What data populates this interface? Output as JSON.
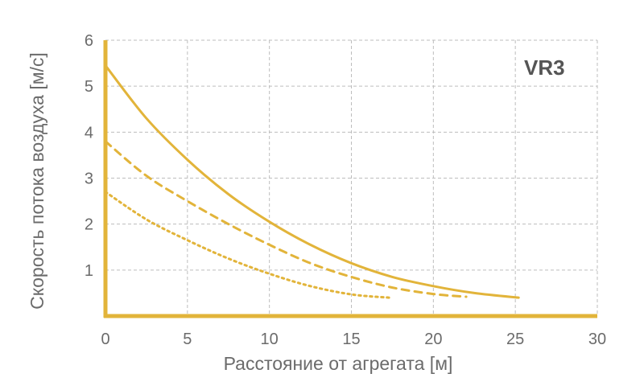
{
  "chart_data": {
    "type": "line",
    "title": "VR3",
    "xlabel": "Расстояние от агрегата [м]",
    "ylabel": "Скорость потока воздуха [м/с]",
    "xlim": [
      0,
      30
    ],
    "ylim": [
      0,
      6
    ],
    "x_ticks": [
      "0",
      "5",
      "10",
      "15",
      "20",
      "25",
      "30"
    ],
    "y_ticks": [
      "1",
      "2",
      "3",
      "4",
      "5",
      "6"
    ],
    "grid": true,
    "accent_color": "#e2b43a",
    "series": [
      {
        "style": "solid",
        "x": [
          0,
          2.5,
          5,
          7.5,
          10,
          12.5,
          15,
          17.5,
          20,
          22.5,
          25.2
        ],
        "y": [
          5.45,
          4.3,
          3.4,
          2.65,
          2.05,
          1.55,
          1.15,
          0.85,
          0.65,
          0.5,
          0.4
        ]
      },
      {
        "style": "dashed",
        "x": [
          0,
          2.5,
          5,
          7.5,
          10,
          12.5,
          15,
          17.5,
          20,
          22
        ],
        "y": [
          3.8,
          3.05,
          2.5,
          2.0,
          1.55,
          1.15,
          0.85,
          0.62,
          0.48,
          0.42
        ]
      },
      {
        "style": "dotted",
        "x": [
          0,
          2.5,
          5,
          7.5,
          10,
          12.5,
          15,
          17.3
        ],
        "y": [
          2.7,
          2.1,
          1.65,
          1.25,
          0.92,
          0.65,
          0.47,
          0.4
        ]
      }
    ]
  }
}
